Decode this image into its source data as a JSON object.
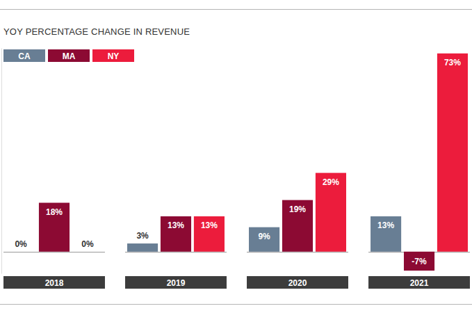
{
  "chart_data": {
    "type": "bar",
    "title": "YOY PERCENTAGE CHANGE IN REVENUE",
    "categories": [
      "2018",
      "2019",
      "2020",
      "2021"
    ],
    "series": [
      {
        "name": "CA",
        "color": "#687e94",
        "values": [
          0,
          3,
          9,
          13
        ],
        "value_labels": [
          "0%",
          "3%",
          "9%",
          "13%"
        ]
      },
      {
        "name": "MA",
        "color": "#8c0a33",
        "values": [
          18,
          13,
          19,
          -7
        ],
        "value_labels": [
          "18%",
          "13%",
          "19%",
          "-7%"
        ]
      },
      {
        "name": "NY",
        "color": "#ec1c3c",
        "values": [
          0,
          13,
          29,
          73
        ],
        "value_labels": [
          "0%",
          "13%",
          "29%",
          "73%"
        ]
      }
    ],
    "ylim": [
      -8,
      75
    ],
    "data_labels": true,
    "tick_labels": false,
    "legend": "top-left"
  }
}
